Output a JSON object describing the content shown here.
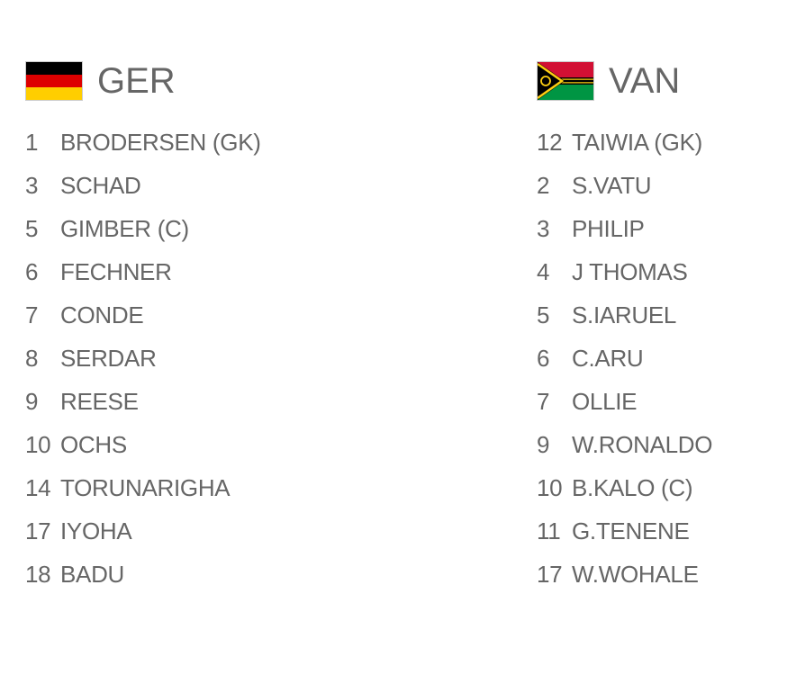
{
  "home": {
    "code": "GER",
    "flag": "germany-flag",
    "colors": [
      "#000000",
      "#DD0000",
      "#FFCE00"
    ],
    "players": [
      {
        "num": "1",
        "name": "BRODERSEN (GK)"
      },
      {
        "num": "3",
        "name": "SCHAD"
      },
      {
        "num": "5",
        "name": "GIMBER (C)"
      },
      {
        "num": "6",
        "name": "FECHNER"
      },
      {
        "num": "7",
        "name": "CONDE"
      },
      {
        "num": "8",
        "name": "SERDAR"
      },
      {
        "num": "9",
        "name": "REESE"
      },
      {
        "num": "10",
        "name": "OCHS"
      },
      {
        "num": "14",
        "name": "TORUNARIGHA"
      },
      {
        "num": "17",
        "name": "IYOHA"
      },
      {
        "num": "18",
        "name": "BADU"
      }
    ]
  },
  "away": {
    "code": "VAN",
    "flag": "vanuatu-flag",
    "colors": [
      "#D21034",
      "#009543",
      "#000000",
      "#FDCE12"
    ],
    "players": [
      {
        "num": "12",
        "name": "TAIWIA (GK)"
      },
      {
        "num": "2",
        "name": "S.VATU"
      },
      {
        "num": "3",
        "name": "PHILIP"
      },
      {
        "num": "4",
        "name": "J THOMAS"
      },
      {
        "num": "5",
        "name": "S.IARUEL"
      },
      {
        "num": "6",
        "name": "C.ARU"
      },
      {
        "num": "7",
        "name": "OLLIE"
      },
      {
        "num": "9",
        "name": "W.RONALDO"
      },
      {
        "num": "10",
        "name": "B.KALO (C)"
      },
      {
        "num": "11",
        "name": "G.TENENE"
      },
      {
        "num": "17",
        "name": "W.WOHALE"
      }
    ]
  }
}
